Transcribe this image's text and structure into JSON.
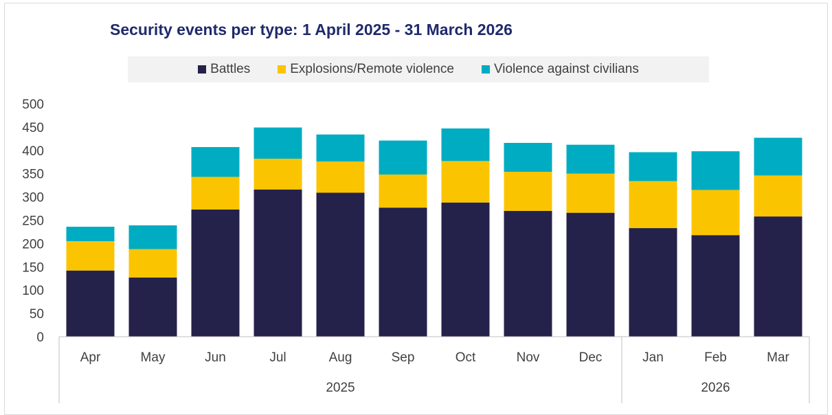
{
  "chart_data": {
    "type": "bar",
    "stacked": true,
    "title": "Security events per type: 1 April 2025 - 31 March 2026",
    "xlabel": "",
    "ylabel": "",
    "ylim": [
      0,
      500
    ],
    "yticks": [
      0,
      50,
      100,
      150,
      200,
      250,
      300,
      350,
      400,
      450,
      500
    ],
    "categories": [
      "Apr",
      "May",
      "Jun",
      "Jul",
      "Aug",
      "Sep",
      "Oct",
      "Nov",
      "Dec",
      "Jan",
      "Feb",
      "Mar"
    ],
    "groups": [
      {
        "label": "2025",
        "categories": [
          "Apr",
          "May",
          "Jun",
          "Jul",
          "Aug",
          "Sep",
          "Oct",
          "Nov",
          "Dec"
        ]
      },
      {
        "label": "2026",
        "categories": [
          "Jan",
          "Feb",
          "Mar"
        ]
      }
    ],
    "legend_position": "top",
    "grid": false,
    "series": [
      {
        "name": "Battles",
        "color": "#24224a",
        "values": [
          142,
          127,
          273,
          316,
          309,
          277,
          288,
          270,
          266,
          233,
          218,
          258
        ]
      },
      {
        "name": "Explosions/Remote violence",
        "color": "#fbc400",
        "values": [
          63,
          61,
          70,
          66,
          67,
          71,
          89,
          84,
          84,
          101,
          97,
          88
        ]
      },
      {
        "name": "Violence against civilians",
        "color": "#00acc1",
        "values": [
          31,
          51,
          64,
          67,
          58,
          73,
          70,
          62,
          62,
          62,
          83,
          81
        ]
      }
    ]
  }
}
